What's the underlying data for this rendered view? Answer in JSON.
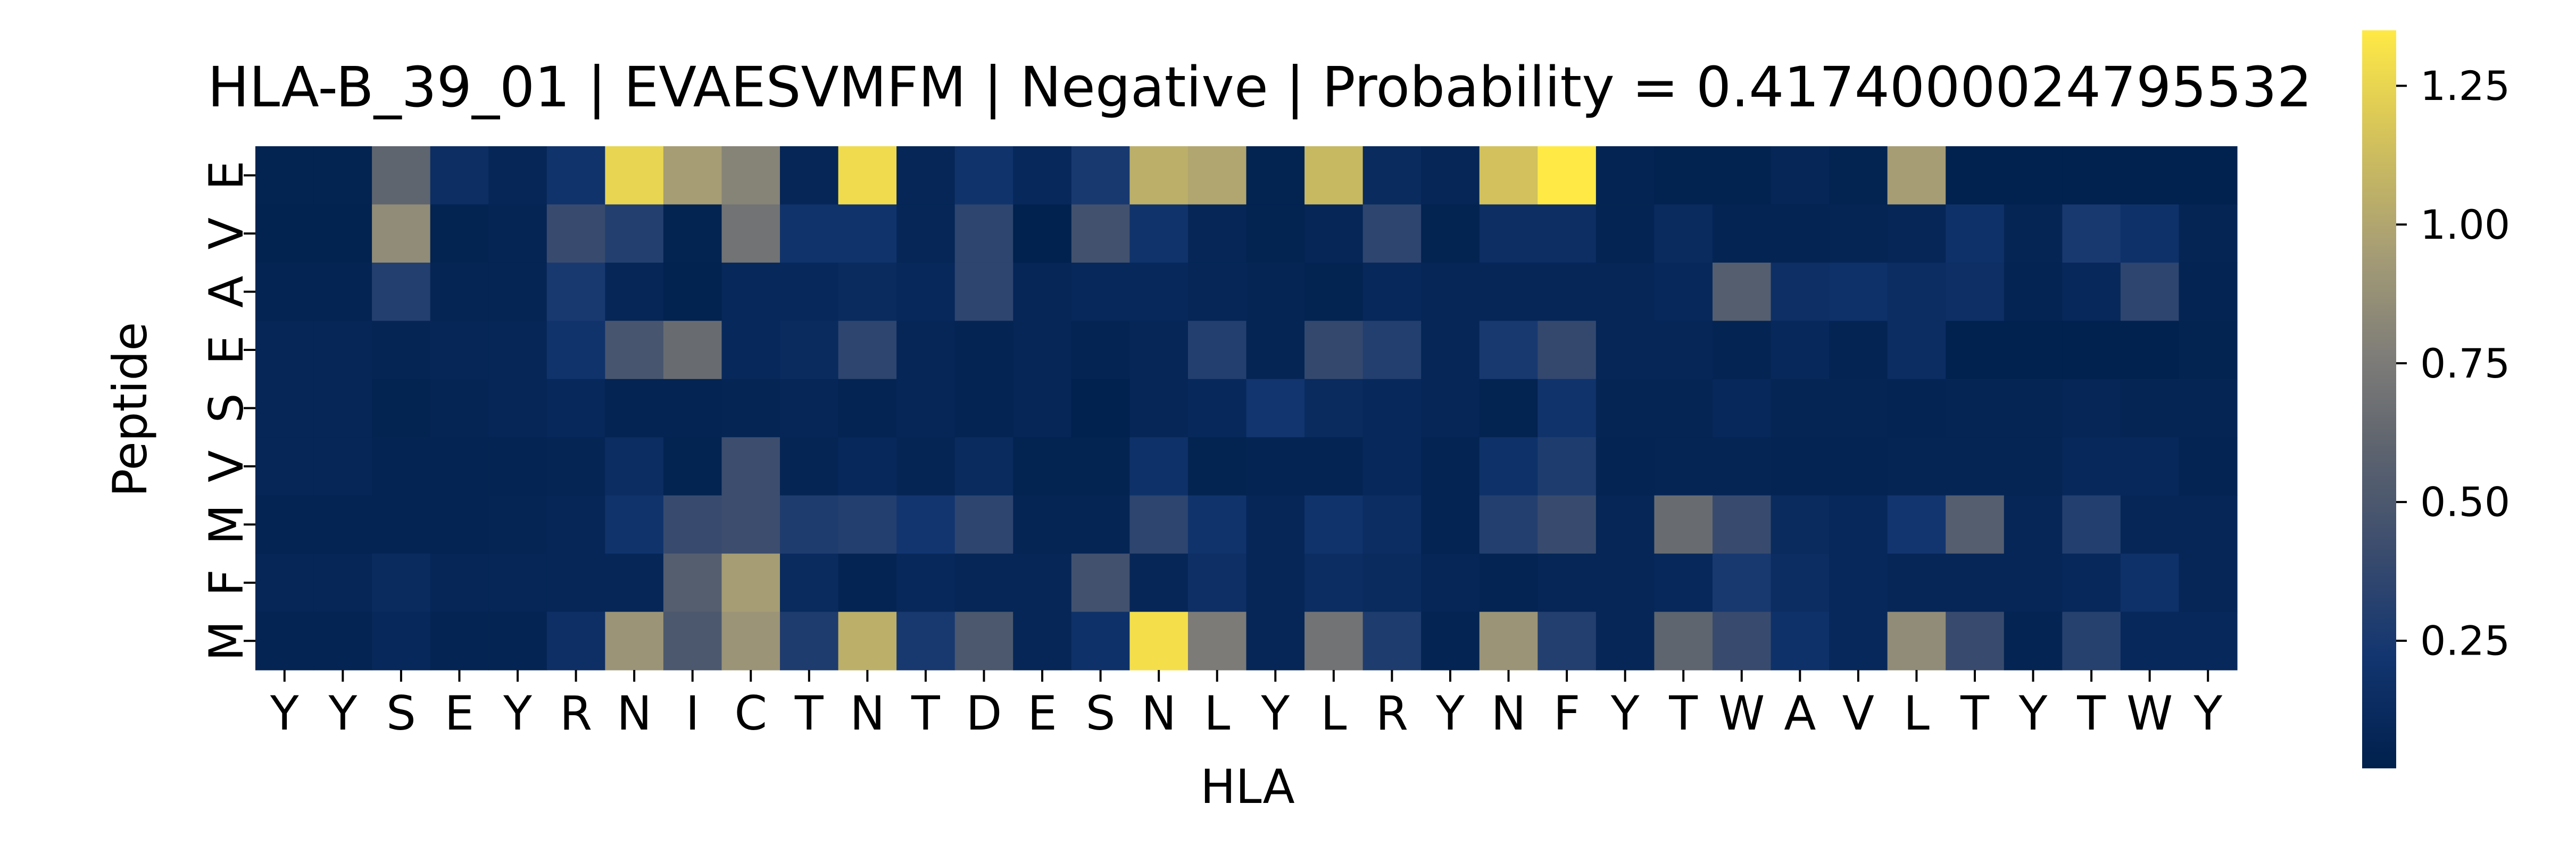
{
  "chart_data": {
    "type": "heatmap",
    "title": "HLA-B_39_01 | EVAESVMFM | Negative | Probability = 0.4174000024795532",
    "xlabel": "HLA",
    "ylabel": "Peptide",
    "x_labels": [
      "Y",
      "Y",
      "S",
      "E",
      "Y",
      "R",
      "N",
      "I",
      "C",
      "T",
      "N",
      "T",
      "D",
      "E",
      "S",
      "N",
      "L",
      "Y",
      "L",
      "R",
      "Y",
      "N",
      "F",
      "Y",
      "T",
      "W",
      "A",
      "V",
      "L",
      "T",
      "Y",
      "T",
      "W",
      "Y"
    ],
    "y_labels": [
      "E",
      "V",
      "A",
      "E",
      "S",
      "V",
      "M",
      "F",
      "M"
    ],
    "colormap": "cividis",
    "vmin": 0.02,
    "vmax": 1.35,
    "colorbar_ticks": [
      0.25,
      0.5,
      0.75,
      1.0,
      1.25
    ],
    "colorbar_tick_labels": [
      "0.25",
      "0.50",
      "0.75",
      "1.00",
      "1.25"
    ],
    "values": [
      [
        0.05,
        0.05,
        0.6,
        0.15,
        0.08,
        0.2,
        1.25,
        0.95,
        0.8,
        0.08,
        1.28,
        0.08,
        0.2,
        0.1,
        0.25,
        1.05,
        1.0,
        0.05,
        1.1,
        0.12,
        0.08,
        1.15,
        1.35,
        0.06,
        0.04,
        0.04,
        0.08,
        0.05,
        0.95,
        0.03,
        0.03,
        0.03,
        0.03,
        0.03
      ],
      [
        0.04,
        0.04,
        0.85,
        0.05,
        0.07,
        0.4,
        0.3,
        0.05,
        0.7,
        0.2,
        0.2,
        0.08,
        0.35,
        0.03,
        0.45,
        0.2,
        0.08,
        0.05,
        0.08,
        0.35,
        0.05,
        0.15,
        0.15,
        0.06,
        0.12,
        0.06,
        0.06,
        0.07,
        0.08,
        0.18,
        0.07,
        0.25,
        0.18,
        0.07
      ],
      [
        0.06,
        0.06,
        0.3,
        0.07,
        0.07,
        0.25,
        0.08,
        0.04,
        0.1,
        0.1,
        0.12,
        0.1,
        0.35,
        0.08,
        0.1,
        0.1,
        0.08,
        0.07,
        0.05,
        0.1,
        0.08,
        0.08,
        0.08,
        0.08,
        0.1,
        0.55,
        0.16,
        0.18,
        0.14,
        0.16,
        0.06,
        0.1,
        0.35,
        0.06
      ],
      [
        0.08,
        0.08,
        0.07,
        0.08,
        0.08,
        0.2,
        0.48,
        0.65,
        0.1,
        0.12,
        0.35,
        0.08,
        0.06,
        0.08,
        0.06,
        0.08,
        0.3,
        0.07,
        0.38,
        0.3,
        0.08,
        0.25,
        0.38,
        0.08,
        0.08,
        0.06,
        0.1,
        0.06,
        0.14,
        0.03,
        0.03,
        0.03,
        0.03,
        0.05
      ],
      [
        0.08,
        0.08,
        0.05,
        0.07,
        0.08,
        0.1,
        0.06,
        0.06,
        0.07,
        0.08,
        0.06,
        0.08,
        0.06,
        0.08,
        0.03,
        0.08,
        0.1,
        0.22,
        0.12,
        0.1,
        0.08,
        0.05,
        0.2,
        0.07,
        0.07,
        0.1,
        0.07,
        0.07,
        0.06,
        0.07,
        0.07,
        0.08,
        0.07,
        0.07
      ],
      [
        0.08,
        0.08,
        0.06,
        0.06,
        0.06,
        0.07,
        0.14,
        0.05,
        0.42,
        0.07,
        0.1,
        0.07,
        0.12,
        0.05,
        0.05,
        0.18,
        0.05,
        0.06,
        0.06,
        0.1,
        0.06,
        0.18,
        0.28,
        0.06,
        0.07,
        0.07,
        0.06,
        0.06,
        0.07,
        0.07,
        0.07,
        0.1,
        0.1,
        0.06
      ],
      [
        0.06,
        0.06,
        0.06,
        0.06,
        0.07,
        0.08,
        0.2,
        0.4,
        0.42,
        0.28,
        0.3,
        0.22,
        0.35,
        0.07,
        0.07,
        0.35,
        0.2,
        0.08,
        0.2,
        0.14,
        0.06,
        0.3,
        0.4,
        0.08,
        0.65,
        0.4,
        0.12,
        0.1,
        0.22,
        0.55,
        0.08,
        0.3,
        0.08,
        0.08
      ],
      [
        0.08,
        0.08,
        0.12,
        0.08,
        0.08,
        0.08,
        0.08,
        0.55,
        0.95,
        0.12,
        0.06,
        0.1,
        0.08,
        0.08,
        0.45,
        0.08,
        0.16,
        0.08,
        0.14,
        0.12,
        0.08,
        0.06,
        0.08,
        0.08,
        0.1,
        0.25,
        0.14,
        0.1,
        0.08,
        0.08,
        0.08,
        0.1,
        0.18,
        0.08
      ],
      [
        0.06,
        0.06,
        0.1,
        0.06,
        0.06,
        0.16,
        0.9,
        0.5,
        0.9,
        0.28,
        1.05,
        0.25,
        0.5,
        0.08,
        0.18,
        1.3,
        0.75,
        0.08,
        0.7,
        0.28,
        0.06,
        0.9,
        0.3,
        0.08,
        0.6,
        0.4,
        0.18,
        0.1,
        0.85,
        0.4,
        0.06,
        0.32,
        0.1,
        0.1
      ]
    ]
  }
}
